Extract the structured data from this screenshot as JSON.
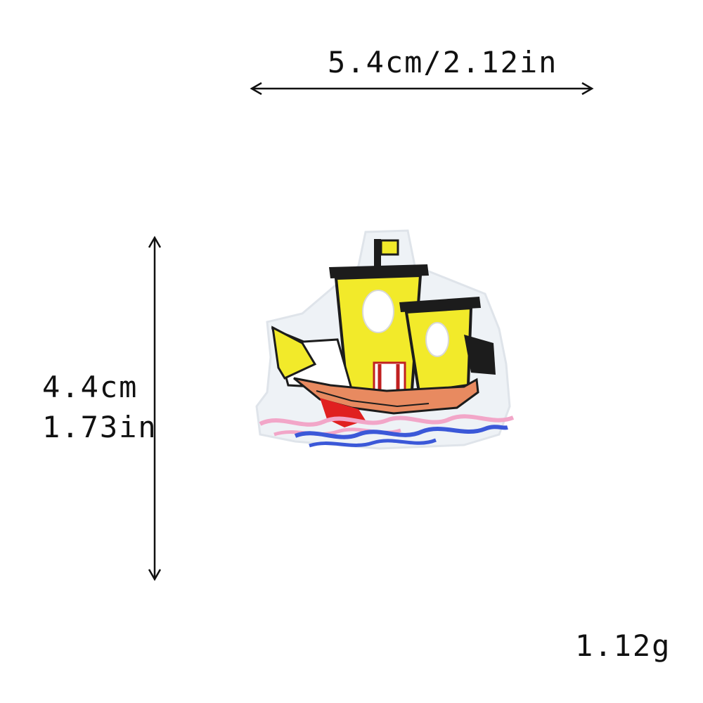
{
  "dimensions": {
    "width_label": "5.4cm/2.12in",
    "height_cm": "4.4cm",
    "height_in": "1.73in",
    "weight": "1.12g"
  },
  "product": {
    "icon": "sailing-ship-embroidered-patch",
    "colors": {
      "sail": "#f2ea2a",
      "outline": "#1c1c1c",
      "hull": "#e88a60",
      "hull_red": "#e02020",
      "water_blue": "#3b58d8",
      "water_pink": "#f2a6c8",
      "backing": "#eef2f6"
    }
  }
}
